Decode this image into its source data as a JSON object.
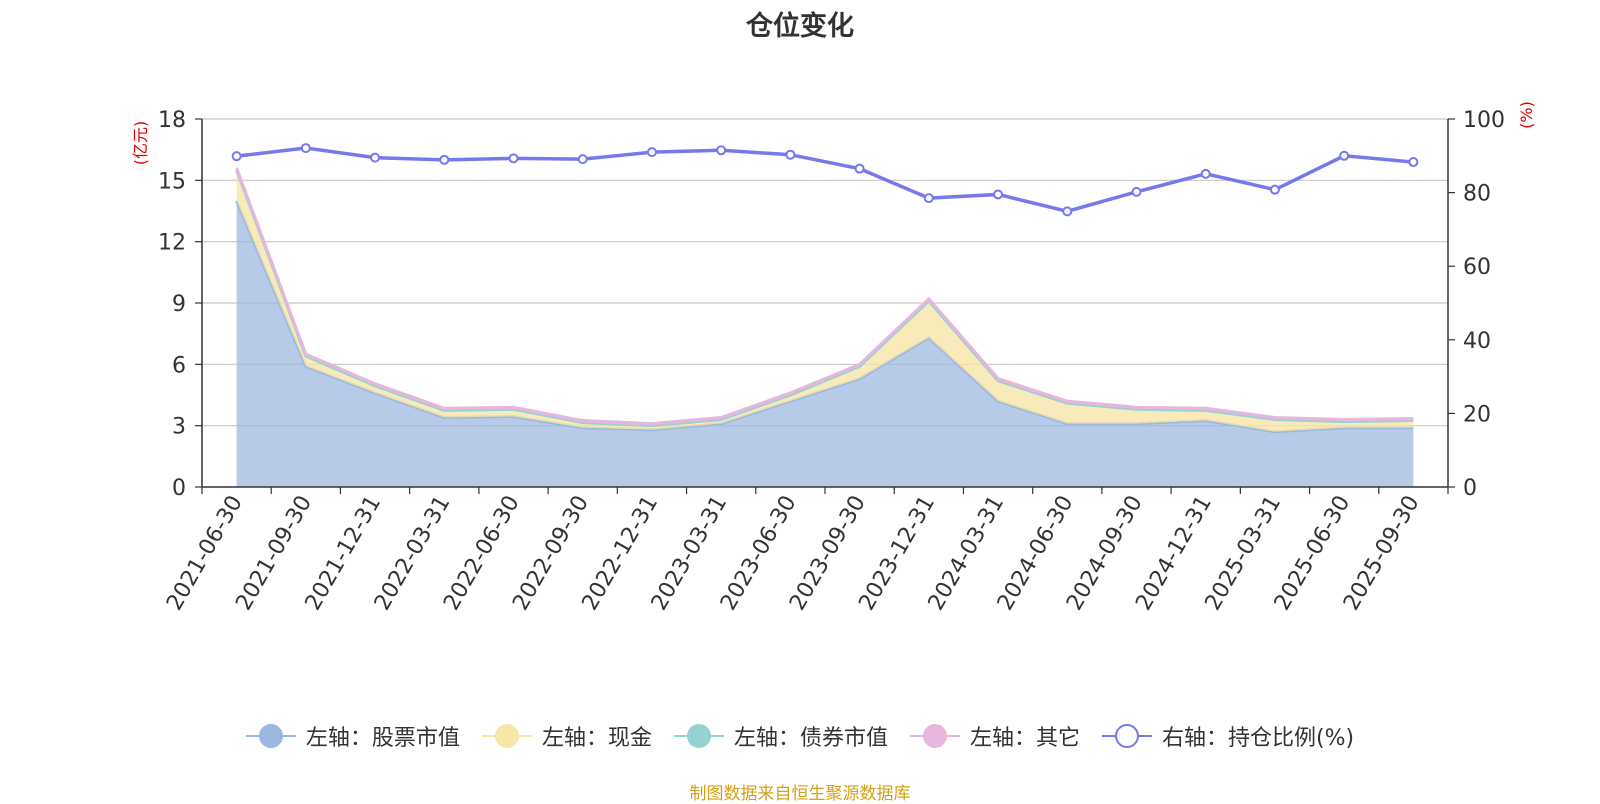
{
  "chart_data": {
    "type": "area",
    "title": "仓位变化",
    "left_axis_unit": "(亿元)",
    "right_axis_unit": "(%)",
    "left_ylim": [
      0,
      18
    ],
    "left_ticks": [
      0,
      3,
      6,
      9,
      12,
      15,
      18
    ],
    "right_ylim": [
      0,
      100
    ],
    "right_ticks": [
      0,
      20,
      40,
      60,
      80,
      100
    ],
    "categories": [
      "2021-06-30",
      "2021-09-30",
      "2021-12-31",
      "2022-03-31",
      "2022-06-30",
      "2022-09-30",
      "2022-12-31",
      "2023-03-31",
      "2023-06-30",
      "2023-09-30",
      "2023-12-31",
      "2024-03-31",
      "2024-06-30",
      "2024-09-30",
      "2024-12-31",
      "2025-03-31",
      "2025-06-30",
      "2025-09-30"
    ],
    "series": [
      {
        "name": "左轴：股票市值",
        "axis": "left",
        "stacked": true,
        "color": "#9bb7e0",
        "values": [
          14.0,
          5.9,
          4.6,
          3.4,
          3.45,
          2.9,
          2.8,
          3.1,
          4.2,
          5.3,
          7.3,
          4.2,
          3.1,
          3.1,
          3.25,
          2.7,
          2.9,
          2.9
        ]
      },
      {
        "name": "左轴：现金",
        "axis": "left",
        "stacked": true,
        "color": "#f7e6a5",
        "values": [
          1.5,
          0.5,
          0.35,
          0.35,
          0.35,
          0.25,
          0.2,
          0.2,
          0.3,
          0.6,
          1.8,
          1.0,
          1.0,
          0.7,
          0.5,
          0.6,
          0.3,
          0.35
        ]
      },
      {
        "name": "左轴：债券市值",
        "axis": "left",
        "stacked": true,
        "color": "#93d3d1",
        "values": [
          0,
          0,
          0,
          0,
          0,
          0,
          0,
          0,
          0,
          0,
          0,
          0,
          0,
          0,
          0,
          0,
          0,
          0
        ]
      },
      {
        "name": "左轴：其它",
        "axis": "left",
        "stacked": true,
        "color": "#e6b6dc",
        "values": [
          0.1,
          0.1,
          0.1,
          0.1,
          0.1,
          0.1,
          0.1,
          0.1,
          0.1,
          0.1,
          0.1,
          0.1,
          0.1,
          0.1,
          0.1,
          0.1,
          0.1,
          0.1
        ]
      },
      {
        "name": "右轴：持仓比例(%)",
        "axis": "right",
        "stacked": false,
        "color": "#7479ee",
        "values": [
          89.9,
          92.1,
          89.5,
          88.9,
          89.3,
          89.1,
          91.0,
          91.5,
          90.3,
          86.5,
          78.5,
          79.5,
          74.9,
          80.2,
          85.1,
          80.8,
          90.0,
          88.3
        ]
      }
    ],
    "grid": true,
    "legend_position": "bottom"
  },
  "source_note": "制图数据来自恒生聚源数据库"
}
